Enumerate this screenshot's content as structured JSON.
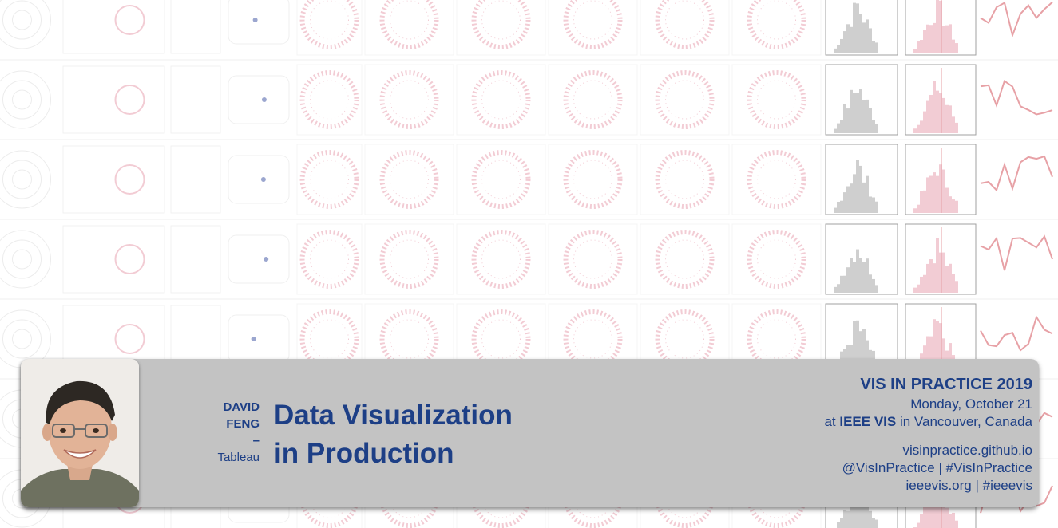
{
  "speaker": {
    "first_name": "DAVID",
    "last_name": "FENG",
    "separator": "–",
    "affiliation": "Tableau"
  },
  "talk": {
    "title_line1": "Data Visualization",
    "title_line2": "in Production"
  },
  "event": {
    "name": "VIS IN PRACTICE 2019",
    "date": "Monday, October 21",
    "loc_prefix": "at ",
    "loc_conference": "IEEE VIS",
    "loc_suffix": " in Vancouver, Canada",
    "website": "visinpractice.github.io",
    "twitter_handle": "@VisInPractice",
    "link_separator": " | ",
    "twitter_hashtag": "#VisInPractice",
    "ieee_site": "ieeevis.org",
    "ieee_hashtag": "#ieeevis"
  },
  "colors": {
    "title_blue": "#1d3f86",
    "banner_gray": "#c3c3c3",
    "plot_pink": "#e9a3b2",
    "plot_red": "#d4555e",
    "plot_blue": "#4a5ea8",
    "hist_gray": "#a8a8a8"
  }
}
